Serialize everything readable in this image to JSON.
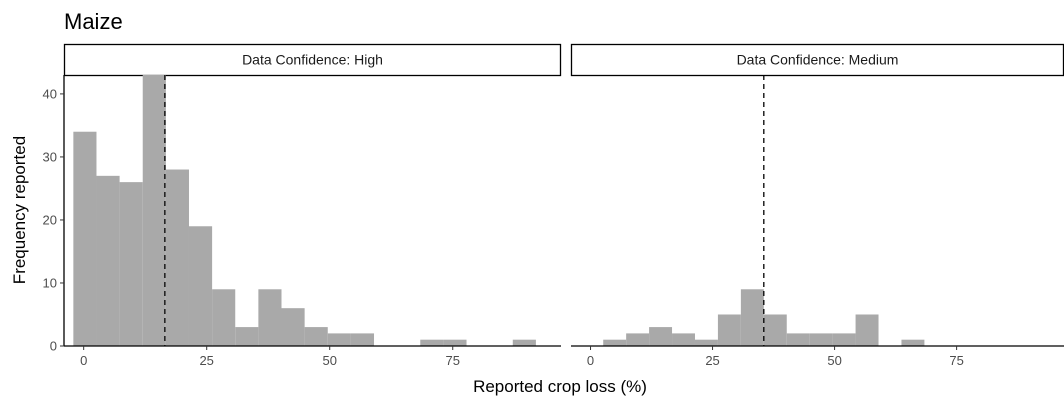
{
  "chart_data": {
    "type": "bar",
    "title": "Maize",
    "xlabel": "Reported crop loss (%)",
    "ylabel": "Frequency reported",
    "xlim": [
      -4,
      97
    ],
    "ylim": [
      0,
      43
    ],
    "x_ticks": [
      0,
      25,
      50,
      75
    ],
    "y_ticks": [
      0,
      10,
      20,
      30,
      40
    ],
    "bin_width": 4.7,
    "bar_color": "#A9A9A9",
    "grid": false,
    "legend": "none",
    "panels": [
      {
        "strip_label": "Data Confidence: High",
        "mean_line": 16.5,
        "bins": [
          {
            "x0": -2.1,
            "x1": 2.6,
            "count": 34
          },
          {
            "x0": 2.6,
            "x1": 7.3,
            "count": 27
          },
          {
            "x0": 7.3,
            "x1": 12.0,
            "count": 26
          },
          {
            "x0": 12.0,
            "x1": 16.7,
            "count": 43
          },
          {
            "x0": 16.7,
            "x1": 21.4,
            "count": 28
          },
          {
            "x0": 21.4,
            "x1": 26.1,
            "count": 19
          },
          {
            "x0": 26.1,
            "x1": 30.8,
            "count": 9
          },
          {
            "x0": 30.8,
            "x1": 35.5,
            "count": 3
          },
          {
            "x0": 35.5,
            "x1": 40.2,
            "count": 9
          },
          {
            "x0": 40.2,
            "x1": 44.9,
            "count": 6
          },
          {
            "x0": 44.9,
            "x1": 49.6,
            "count": 3
          },
          {
            "x0": 49.6,
            "x1": 54.3,
            "count": 2
          },
          {
            "x0": 54.3,
            "x1": 59.0,
            "count": 2
          },
          {
            "x0": 68.4,
            "x1": 73.1,
            "count": 1
          },
          {
            "x0": 73.1,
            "x1": 77.8,
            "count": 1
          },
          {
            "x0": 87.2,
            "x1": 91.9,
            "count": 1
          }
        ]
      },
      {
        "strip_label": "Data Confidence: Medium",
        "mean_line": 35.5,
        "bins": [
          {
            "x0": 2.6,
            "x1": 7.3,
            "count": 1
          },
          {
            "x0": 7.3,
            "x1": 12.0,
            "count": 2
          },
          {
            "x0": 12.0,
            "x1": 16.7,
            "count": 3
          },
          {
            "x0": 16.7,
            "x1": 21.4,
            "count": 2
          },
          {
            "x0": 21.4,
            "x1": 26.1,
            "count": 1
          },
          {
            "x0": 26.1,
            "x1": 30.8,
            "count": 5
          },
          {
            "x0": 30.8,
            "x1": 35.5,
            "count": 9
          },
          {
            "x0": 35.5,
            "x1": 40.2,
            "count": 5
          },
          {
            "x0": 40.2,
            "x1": 44.9,
            "count": 2
          },
          {
            "x0": 44.9,
            "x1": 49.6,
            "count": 2
          },
          {
            "x0": 49.6,
            "x1": 54.3,
            "count": 2
          },
          {
            "x0": 54.3,
            "x1": 59.0,
            "count": 5
          },
          {
            "x0": 63.7,
            "x1": 68.4,
            "count": 1
          }
        ]
      }
    ]
  }
}
